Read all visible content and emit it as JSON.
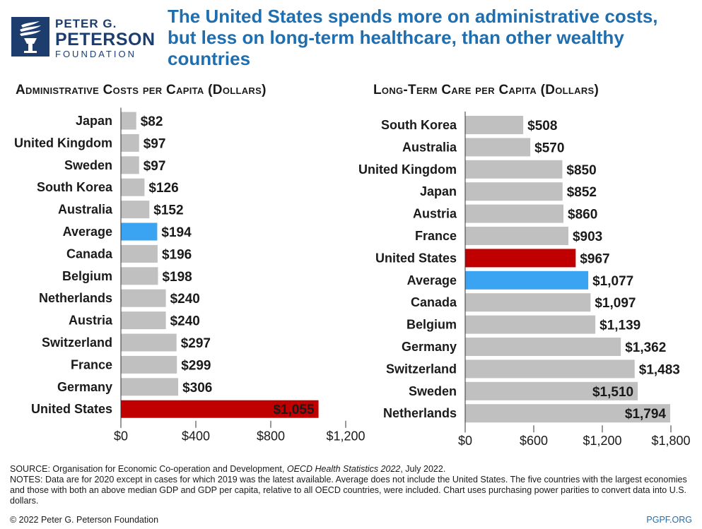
{
  "logo": {
    "line1": "PETER G.",
    "line2": "PETERSON",
    "line3": "FOUNDATION"
  },
  "headline": "The United States spends more on administrative costs, but less on long-term healthcare, than other wealthy countries",
  "colors": {
    "bar_default": "#c0c0c0",
    "bar_highlight_us": "#c00000",
    "bar_average": "#3aa3f2",
    "headline": "#1f6eb0",
    "logo_navy": "#1c3d6e"
  },
  "chart_data": [
    {
      "type": "bar",
      "orientation": "horizontal",
      "title": "Administrative Costs per Capita (Dollars)",
      "categories": [
        "Japan",
        "United Kingdom",
        "Sweden",
        "South Korea",
        "Australia",
        "Average",
        "Canada",
        "Belgium",
        "Netherlands",
        "Austria",
        "Switzerland",
        "France",
        "Germany",
        "United States"
      ],
      "values": [
        82,
        97,
        97,
        126,
        152,
        194,
        196,
        198,
        240,
        240,
        297,
        299,
        306,
        1055
      ],
      "value_labels": [
        "$82",
        "$97",
        "$97",
        "$126",
        "$152",
        "$194",
        "$196",
        "$198",
        "$240",
        "$240",
        "$297",
        "$299",
        "$306",
        "$1,055"
      ],
      "highlight": {
        "United States": "us",
        "Average": "average"
      },
      "xlim": [
        0,
        1200
      ],
      "xticks": [
        0,
        400,
        800,
        1200
      ],
      "xtick_labels": [
        "$0",
        "$400",
        "$800",
        "$1,200"
      ],
      "xlabel": "",
      "ylabel": ""
    },
    {
      "type": "bar",
      "orientation": "horizontal",
      "title": "Long-Term Care per Capita (Dollars)",
      "categories": [
        "South Korea",
        "Australia",
        "United Kingdom",
        "Japan",
        "Austria",
        "France",
        "United States",
        "Average",
        "Canada",
        "Belgium",
        "Germany",
        "Switzerland",
        "Sweden",
        "Netherlands"
      ],
      "values": [
        508,
        570,
        850,
        852,
        860,
        903,
        967,
        1077,
        1097,
        1139,
        1362,
        1483,
        1510,
        1794
      ],
      "value_labels": [
        "$508",
        "$570",
        "$850",
        "$852",
        "$860",
        "$903",
        "$967",
        "$1,077",
        "$1,097",
        "$1,139",
        "$1,362",
        "$1,483",
        "$1,510",
        "$1,794"
      ],
      "highlight": {
        "United States": "us",
        "Average": "average"
      },
      "xlim": [
        0,
        1800
      ],
      "xticks": [
        0,
        600,
        1200,
        1800
      ],
      "xtick_labels": [
        "$0",
        "$600",
        "$1,200",
        "$1,800"
      ],
      "xlabel": "",
      "ylabel": ""
    }
  ],
  "footer": {
    "source_prefix": "SOURCE: Organisation for Economic Co-operation and Development, ",
    "source_italic": "OECD Health Statistics 2022",
    "source_suffix": ", July 2022.",
    "notes": "NOTES: Data are for 2020 except in cases for which 2019 was the latest available. Average does not include the United States. The five countries with the largest economies and those with both an above median GDP and GDP per capita, relative to all OECD countries, were included. Chart uses purchasing power parities to convert data into U.S. dollars.",
    "copyright": "© 2022 Peter G. Peterson Foundation",
    "site": "PGPF.ORG"
  }
}
